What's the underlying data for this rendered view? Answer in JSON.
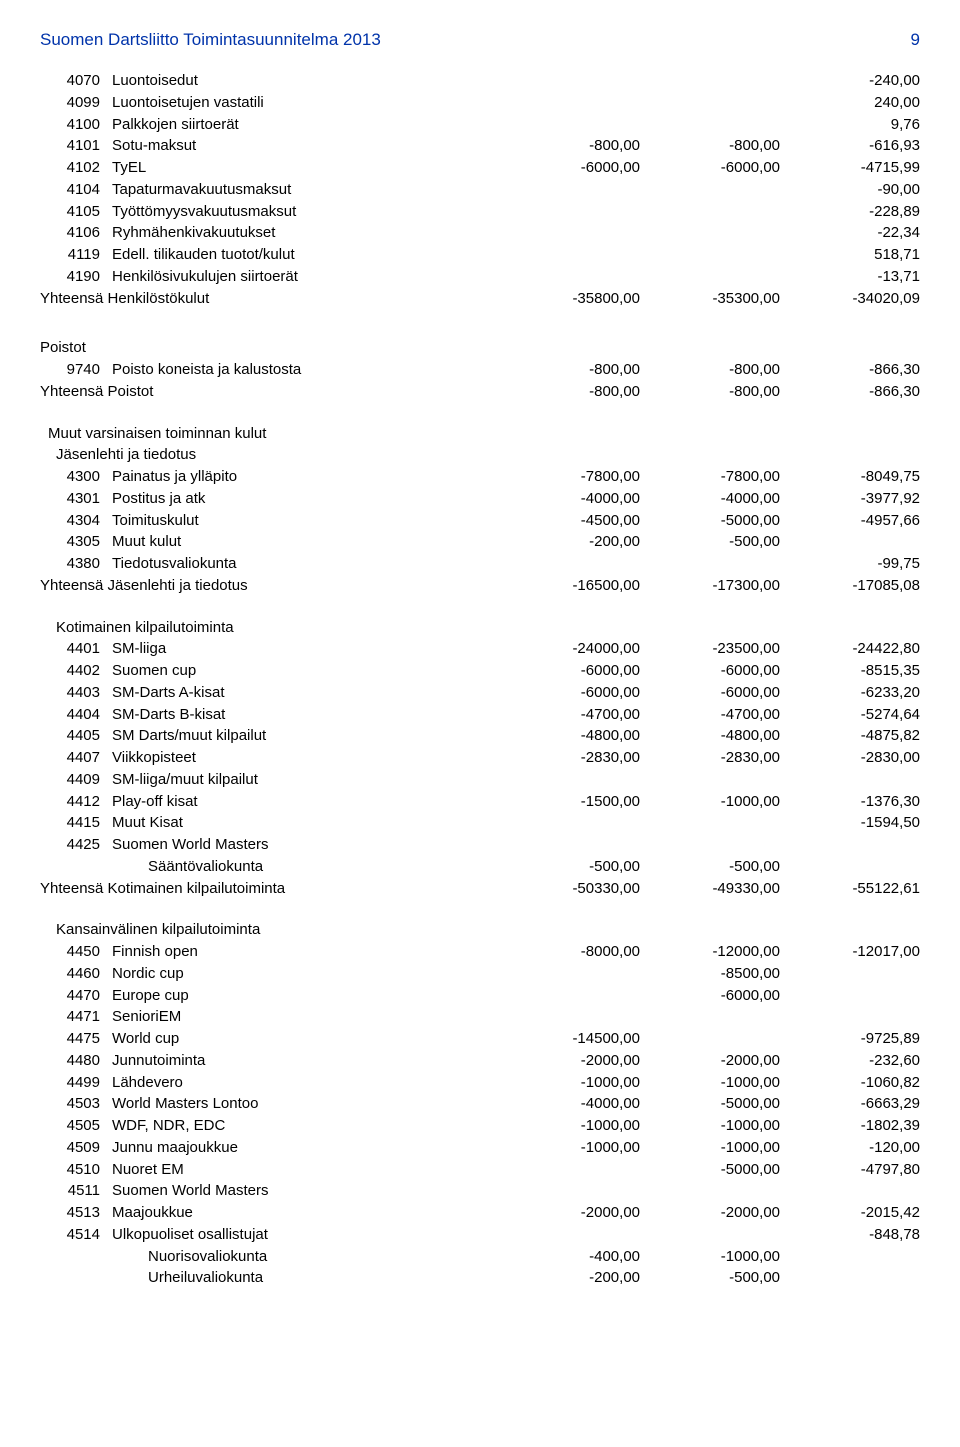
{
  "header": {
    "title": "Suomen Dartsliitto Toimintasuunnitelma 2013",
    "page": "9"
  },
  "block1": [
    {
      "code": "4070",
      "label": "Luontoisedut",
      "c1": "",
      "c2": "",
      "c3": "-240,00"
    },
    {
      "code": "4099",
      "label": "Luontoisetujen vastatili",
      "c1": "",
      "c2": "",
      "c3": "240,00"
    },
    {
      "code": "4100",
      "label": "Palkkojen siirtoerät",
      "c1": "",
      "c2": "",
      "c3": "9,76"
    },
    {
      "code": "4101",
      "label": "Sotu-maksut",
      "c1": "-800,00",
      "c2": "-800,00",
      "c3": "-616,93"
    },
    {
      "code": "4102",
      "label": "TyEL",
      "c1": "-6000,00",
      "c2": "-6000,00",
      "c3": "-4715,99"
    },
    {
      "code": "4104",
      "label": "Tapaturmavakuutusmaksut",
      "c1": "",
      "c2": "",
      "c3": "-90,00"
    },
    {
      "code": "4105",
      "label": "Työttömyysvakuutusmaksut",
      "c1": "",
      "c2": "",
      "c3": "-228,89"
    },
    {
      "code": "4106",
      "label": "Ryhmähenkivakuutukset",
      "c1": "",
      "c2": "",
      "c3": "-22,34"
    },
    {
      "code": "4119",
      "label": "Edell. tilikauden tuotot/kulut",
      "c1": "",
      "c2": "",
      "c3": "518,71"
    },
    {
      "code": "4190",
      "label": "Henkilösivukulujen siirtoerät",
      "c1": "",
      "c2": "",
      "c3": "-13,71"
    }
  ],
  "block1_total": {
    "label": "Yhteensä   Henkilöstökulut",
    "c1": "-35800,00",
    "c2": "-35300,00",
    "c3": "-34020,09"
  },
  "poistot_title": "Poistot",
  "poistot": [
    {
      "code": "9740",
      "label": "Poisto koneista ja kalustosta",
      "c1": "-800,00",
      "c2": "-800,00",
      "c3": "-866,30"
    }
  ],
  "poistot_total": {
    "label": "Yhteensä   Poistot",
    "c1": "-800,00",
    "c2": "-800,00",
    "c3": "-866,30"
  },
  "muut_title": "Muut varsinaisen toiminnan kulut",
  "jasen_title": "Jäsenlehti ja tiedotus",
  "jasen": [
    {
      "code": "4300",
      "label": "Painatus ja ylläpito",
      "c1": "-7800,00",
      "c2": "-7800,00",
      "c3": "-8049,75"
    },
    {
      "code": "4301",
      "label": "Postitus ja atk",
      "c1": "-4000,00",
      "c2": "-4000,00",
      "c3": "-3977,92"
    },
    {
      "code": "4304",
      "label": "Toimituskulut",
      "c1": "-4500,00",
      "c2": "-5000,00",
      "c3": "-4957,66"
    },
    {
      "code": "4305",
      "label": "Muut kulut",
      "c1": "-200,00",
      "c2": "-500,00",
      "c3": ""
    },
    {
      "code": "4380",
      "label": "Tiedotusvaliokunta",
      "c1": "",
      "c2": "",
      "c3": "-99,75"
    }
  ],
  "jasen_total": {
    "label": "Yhteensä   Jäsenlehti ja tiedotus",
    "c1": "-16500,00",
    "c2": "-17300,00",
    "c3": "-17085,08"
  },
  "koti_title": "Kotimainen kilpailutoiminta",
  "koti": [
    {
      "code": "4401",
      "label": "SM-liiga",
      "c1": "-24000,00",
      "c2": "-23500,00",
      "c3": "-24422,80"
    },
    {
      "code": "4402",
      "label": "Suomen cup",
      "c1": "-6000,00",
      "c2": "-6000,00",
      "c3": "-8515,35"
    },
    {
      "code": "4403",
      "label": "SM-Darts A-kisat",
      "c1": "-6000,00",
      "c2": "-6000,00",
      "c3": "-6233,20"
    },
    {
      "code": "4404",
      "label": "SM-Darts B-kisat",
      "c1": "-4700,00",
      "c2": "-4700,00",
      "c3": "-5274,64"
    },
    {
      "code": "4405",
      "label": "SM Darts/muut kilpailut",
      "c1": "-4800,00",
      "c2": "-4800,00",
      "c3": "-4875,82"
    },
    {
      "code": "4407",
      "label": "Viikkopisteet",
      "c1": "-2830,00",
      "c2": "-2830,00",
      "c3": "-2830,00"
    },
    {
      "code": "4409",
      "label": "SM-liiga/muut kilpailut",
      "c1": "",
      "c2": "",
      "c3": ""
    },
    {
      "code": "4412",
      "label": "Play-off kisat",
      "c1": "-1500,00",
      "c2": "-1000,00",
      "c3": "-1376,30"
    },
    {
      "code": "4415",
      "label": "Muut Kisat",
      "c1": "",
      "c2": "",
      "c3": "-1594,50"
    },
    {
      "code": "4425",
      "label": "Suomen World Masters",
      "c1": "",
      "c2": "",
      "c3": ""
    },
    {
      "code": "",
      "label": "Sääntövaliokunta",
      "c1": "-500,00",
      "c2": "-500,00",
      "c3": "",
      "indent": true
    }
  ],
  "koti_total": {
    "label": "Yhteensä   Kotimainen kilpailutoiminta",
    "c1": "-50330,00",
    "c2": "-49330,00",
    "c3": "-55122,61"
  },
  "kan_title": "Kansainvälinen kilpailutoiminta",
  "kan": [
    {
      "code": "4450",
      "label": "Finnish open",
      "c1": "-8000,00",
      "c2": "-12000,00",
      "c3": "-12017,00"
    },
    {
      "code": "4460",
      "label": "Nordic cup",
      "c1": "",
      "c2": "-8500,00",
      "c3": ""
    },
    {
      "code": "4470",
      "label": "Europe cup",
      "c1": "",
      "c2": "-6000,00",
      "c3": ""
    },
    {
      "code": "4471",
      "label": "SenioriEM",
      "c1": "",
      "c2": "",
      "c3": ""
    },
    {
      "code": "4475",
      "label": "World cup",
      "c1": "-14500,00",
      "c2": "",
      "c3": "-9725,89"
    },
    {
      "code": "4480",
      "label": "Junnutoiminta",
      "c1": "-2000,00",
      "c2": "-2000,00",
      "c3": "-232,60"
    },
    {
      "code": "4499",
      "label": "Lähdevero",
      "c1": "-1000,00",
      "c2": "-1000,00",
      "c3": "-1060,82"
    },
    {
      "code": "4503",
      "label": "World Masters Lontoo",
      "c1": "-4000,00",
      "c2": "-5000,00",
      "c3": "-6663,29"
    },
    {
      "code": "4505",
      "label": "WDF, NDR, EDC",
      "c1": "-1000,00",
      "c2": "-1000,00",
      "c3": "-1802,39"
    },
    {
      "code": "4509",
      "label": "Junnu maajoukkue",
      "c1": "-1000,00",
      "c2": "-1000,00",
      "c3": "-120,00"
    },
    {
      "code": "4510",
      "label": "Nuoret EM",
      "c1": "",
      "c2": "-5000,00",
      "c3": "-4797,80"
    },
    {
      "code": "4511",
      "label": "Suomen World Masters",
      "c1": "",
      "c2": "",
      "c3": ""
    },
    {
      "code": "4513",
      "label": "Maajoukkue",
      "c1": "-2000,00",
      "c2": "-2000,00",
      "c3": "-2015,42"
    },
    {
      "code": "4514",
      "label": "Ulkopuoliset osallistujat",
      "c1": "",
      "c2": "",
      "c3": "-848,78"
    },
    {
      "code": "",
      "label": "Nuorisovaliokunta",
      "c1": "-400,00",
      "c2": "-1000,00",
      "c3": "",
      "indent": true
    },
    {
      "code": "",
      "label": "Urheiluvaliokunta",
      "c1": "-200,00",
      "c2": "-500,00",
      "c3": "",
      "indent": true
    }
  ]
}
